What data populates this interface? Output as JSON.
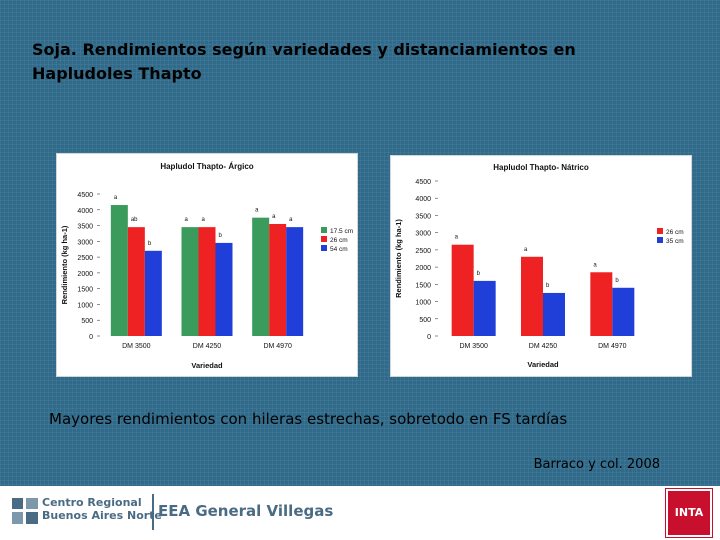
{
  "title_lines": [
    "Soja. Rendimientos según variedades y distanciamientos en",
    "Hapludoles Thapto"
  ],
  "note": "Mayores rendimientos con hileras estrechas, sobretodo en FS tardías",
  "source": "Barraco y col. 2008",
  "footer": {
    "org_lines": [
      "Centro Regional",
      "Buenos Aires Norte"
    ],
    "eea": "EEA General Villegas",
    "inta": "INTA",
    "brand_color": "#c8102e"
  },
  "chart_data": [
    {
      "type": "bar",
      "title": "Hapludol Thapto- Árgico",
      "xlabel": "Variedad",
      "ylabel": "Rendimiento (kg ha-1)",
      "ylim": [
        0,
        4500
      ],
      "yticks": [
        0,
        500,
        1000,
        1500,
        2000,
        2500,
        3000,
        3500,
        4000,
        4500
      ],
      "categories": [
        "DM 3500",
        "DM 4250",
        "DM 4970"
      ],
      "legend_position": "right",
      "series": [
        {
          "name": "17.5 cm",
          "color": "#3a9b5c",
          "values": [
            4150,
            3450,
            3750
          ],
          "labels": [
            "a",
            "a",
            "a"
          ]
        },
        {
          "name": "26 cm",
          "color": "#ee2222",
          "values": [
            3450,
            3450,
            3550
          ],
          "labels": [
            "ab",
            "a",
            "a"
          ]
        },
        {
          "name": "54 cm",
          "color": "#1f3fd8",
          "values": [
            2700,
            2950,
            3450
          ],
          "labels": [
            "b",
            "b",
            "a"
          ]
        }
      ]
    },
    {
      "type": "bar",
      "title": "Hapludol Thapto- Nátrico",
      "xlabel": "Variedad",
      "ylabel": "Rendimiento (kg ha-1)",
      "ylim": [
        0,
        4500
      ],
      "yticks": [
        0,
        500,
        1000,
        1500,
        2000,
        2500,
        3000,
        3500,
        4000,
        4500
      ],
      "categories": [
        "DM 3500",
        "DM 4250",
        "DM 4970"
      ],
      "legend_position": "right",
      "series": [
        {
          "name": "26 cm",
          "color": "#ee2222",
          "values": [
            2650,
            2300,
            1850
          ],
          "labels": [
            "a",
            "a",
            "a"
          ]
        },
        {
          "name": "35 cm",
          "color": "#1f3fd8",
          "values": [
            1600,
            1250,
            1400
          ],
          "labels": [
            "b",
            "b",
            "b"
          ]
        }
      ]
    }
  ]
}
